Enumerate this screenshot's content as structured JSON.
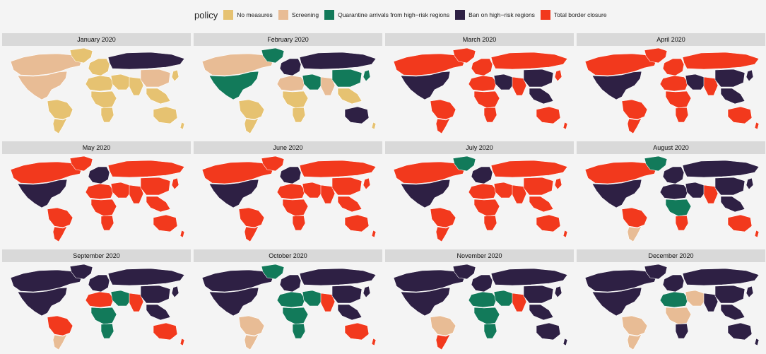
{
  "legend": {
    "title": "policy",
    "items": [
      {
        "key": "none",
        "label": "No measures",
        "color": "#e6c271"
      },
      {
        "key": "screen",
        "label": "Screening",
        "color": "#e8bc95"
      },
      {
        "key": "quar",
        "label": "Quarantine arrivals from high−risk regions",
        "color": "#127a5a"
      },
      {
        "key": "ban",
        "label": "Ban on high−risk regions",
        "color": "#2e2044"
      },
      {
        "key": "close",
        "label": "Total border closure",
        "color": "#f2391d"
      }
    ]
  },
  "panels": [
    {
      "title": "January 2020",
      "policies": {
        "na": "screen",
        "ca": "screen",
        "gl": "none",
        "sa": "none",
        "sas": "none",
        "eu": "none",
        "ru": "ban",
        "me": "none",
        "naf": "none",
        "af": "none",
        "saf": "none",
        "in": "none",
        "cn": "screen",
        "sea": "none",
        "au": "none",
        "nz": "none",
        "jp": "none"
      }
    },
    {
      "title": "February 2020",
      "policies": {
        "na": "quar",
        "ca": "screen",
        "gl": "quar",
        "sa": "none",
        "sas": "none",
        "eu": "ban",
        "ru": "ban",
        "me": "quar",
        "naf": "screen",
        "af": "none",
        "saf": "none",
        "in": "screen",
        "cn": "quar",
        "sea": "none",
        "au": "ban",
        "nz": "none",
        "jp": "quar"
      }
    },
    {
      "title": "March 2020",
      "policies": {
        "na": "ban",
        "ca": "close",
        "gl": "close",
        "sa": "close",
        "sas": "close",
        "eu": "close",
        "ru": "close",
        "me": "ban",
        "naf": "close",
        "af": "close",
        "saf": "close",
        "in": "close",
        "cn": "ban",
        "sea": "ban",
        "au": "close",
        "nz": "close",
        "jp": "close"
      }
    },
    {
      "title": "April 2020",
      "policies": {
        "na": "ban",
        "ca": "close",
        "gl": "close",
        "sa": "close",
        "sas": "close",
        "eu": "close",
        "ru": "close",
        "me": "ban",
        "naf": "close",
        "af": "close",
        "saf": "close",
        "in": "close",
        "cn": "ban",
        "sea": "ban",
        "au": "close",
        "nz": "close",
        "jp": "ban"
      }
    },
    {
      "title": "May 2020",
      "policies": {
        "na": "ban",
        "ca": "close",
        "gl": "close",
        "sa": "close",
        "sas": "close",
        "eu": "ban",
        "ru": "close",
        "me": "close",
        "naf": "close",
        "af": "close",
        "saf": "close",
        "in": "close",
        "cn": "close",
        "sea": "close",
        "au": "close",
        "nz": "close",
        "jp": "close"
      }
    },
    {
      "title": "June 2020",
      "policies": {
        "na": "ban",
        "ca": "close",
        "gl": "close",
        "sa": "close",
        "sas": "close",
        "eu": "ban",
        "ru": "close",
        "me": "close",
        "naf": "close",
        "af": "close",
        "saf": "close",
        "in": "close",
        "cn": "close",
        "sea": "close",
        "au": "close",
        "nz": "close",
        "jp": "close"
      }
    },
    {
      "title": "July 2020",
      "policies": {
        "na": "ban",
        "ca": "close",
        "gl": "quar",
        "sa": "close",
        "sas": "close",
        "eu": "ban",
        "ru": "close",
        "me": "close",
        "naf": "close",
        "af": "close",
        "saf": "close",
        "in": "close",
        "cn": "close",
        "sea": "close",
        "au": "close",
        "nz": "close",
        "jp": "close"
      }
    },
    {
      "title": "August 2020",
      "policies": {
        "na": "ban",
        "ca": "close",
        "gl": "quar",
        "sa": "close",
        "sas": "screen",
        "eu": "ban",
        "ru": "ban",
        "me": "ban",
        "naf": "ban",
        "af": "quar",
        "saf": "close",
        "in": "close",
        "cn": "ban",
        "sea": "ban",
        "au": "close",
        "nz": "close",
        "jp": "ban"
      }
    },
    {
      "title": "September 2020",
      "policies": {
        "na": "ban",
        "ca": "ban",
        "gl": "ban",
        "sa": "close",
        "sas": "screen",
        "eu": "ban",
        "ru": "ban",
        "me": "quar",
        "naf": "close",
        "af": "quar",
        "saf": "quar",
        "in": "close",
        "cn": "ban",
        "sea": "ban",
        "au": "close",
        "nz": "close",
        "jp": "ban"
      }
    },
    {
      "title": "October 2020",
      "policies": {
        "na": "ban",
        "ca": "ban",
        "gl": "quar",
        "sa": "screen",
        "sas": "screen",
        "eu": "ban",
        "ru": "ban",
        "me": "quar",
        "naf": "quar",
        "af": "quar",
        "saf": "quar",
        "in": "close",
        "cn": "ban",
        "sea": "ban",
        "au": "close",
        "nz": "close",
        "jp": "ban"
      }
    },
    {
      "title": "November 2020",
      "policies": {
        "na": "ban",
        "ca": "ban",
        "gl": "ban",
        "sa": "screen",
        "sas": "close",
        "eu": "ban",
        "ru": "ban",
        "me": "quar",
        "naf": "quar",
        "af": "quar",
        "saf": "quar",
        "in": "close",
        "cn": "ban",
        "sea": "ban",
        "au": "ban",
        "nz": "ban",
        "jp": "ban"
      }
    },
    {
      "title": "December 2020",
      "policies": {
        "na": "ban",
        "ca": "ban",
        "gl": "ban",
        "sa": "screen",
        "sas": "screen",
        "eu": "ban",
        "ru": "ban",
        "me": "screen",
        "naf": "quar",
        "af": "screen",
        "saf": "ban",
        "in": "ban",
        "cn": "ban",
        "sea": "ban",
        "au": "ban",
        "nz": "ban",
        "jp": "ban"
      }
    }
  ]
}
